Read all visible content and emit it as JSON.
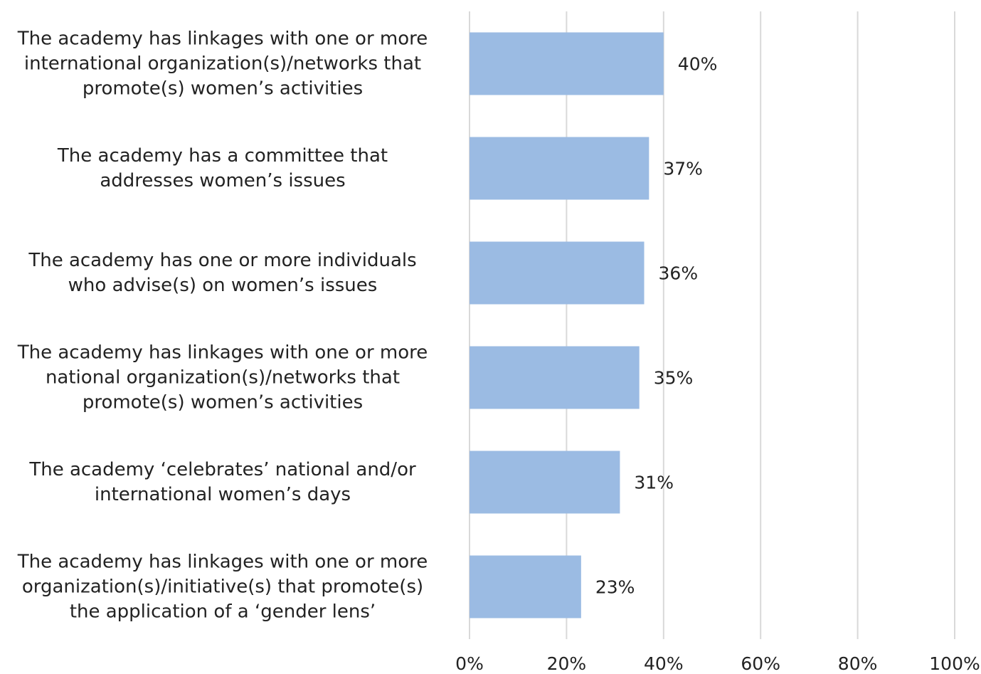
{
  "chart_data": {
    "type": "bar",
    "orientation": "horizontal",
    "title": "",
    "xlabel": "",
    "ylabel": "",
    "categories": [
      "The academy has linkages with one or more international organization(s)/networks that promote(s) women’s activities",
      "The academy has a committee that addresses women’s issues",
      "The academy has one or more individuals who advise(s) on women’s issues",
      "The academy has linkages with one or more national organization(s)/networks that promote(s) women’s activities",
      "The academy ‘celebrates’ national and/or international women’s days",
      "The academy has linkages with one or more organization(s)/initiative(s) that promote(s) the application of a ‘gender lens’"
    ],
    "category_lines": [
      [
        "The academy has linkages with one or more",
        "international organization(s)/networks that",
        "promote(s) women’s activities"
      ],
      [
        "The academy has a committee that",
        "addresses women’s issues"
      ],
      [
        "The academy has one or more individuals",
        "who advise(s) on women’s issues"
      ],
      [
        "The academy has linkages with one or more",
        "national organization(s)/networks that",
        "promote(s) women’s activities"
      ],
      [
        "The academy ‘celebrates’ national and/or",
        "international women’s days"
      ],
      [
        "The academy has linkages with one or more",
        "organization(s)/initiative(s) that promote(s)",
        "the application of a ‘gender lens’"
      ]
    ],
    "values": [
      40,
      37,
      36,
      35,
      31,
      23
    ],
    "data_labels": [
      "40%",
      "37%",
      "36%",
      "35%",
      "31%",
      "23%"
    ],
    "x_ticks": [
      "0%",
      "20%",
      "40%",
      "60%",
      "80%",
      "100%"
    ],
    "xlim": [
      0,
      100
    ],
    "grid": "vertical",
    "legend": "none",
    "colors": {
      "bar": "#9bbbe3",
      "grid": "#d9d9d9",
      "text": "#222222"
    }
  }
}
